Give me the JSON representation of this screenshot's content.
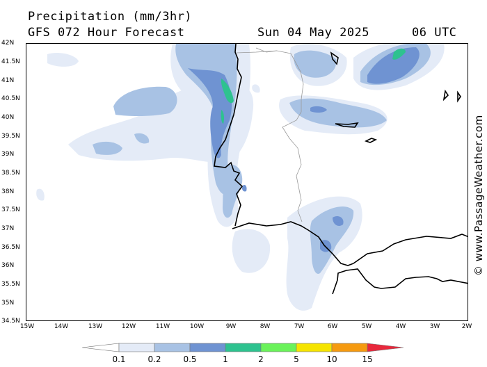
{
  "header": {
    "title": "Precipitation (mm/3hr)",
    "subtitle": "GFS 072 Hour Forecast",
    "date": "Sun 04 May 2025",
    "time": "06 UTC"
  },
  "credit": "© www.PassageWeather.com",
  "map": {
    "lat_labels": [
      "42N",
      "41.5N",
      "41N",
      "40.5N",
      "40N",
      "39.5N",
      "39N",
      "38.5N",
      "38N",
      "37.5N",
      "37N",
      "36.5N",
      "36N",
      "35.5N",
      "35N",
      "34.5N"
    ],
    "lon_labels": [
      "15W",
      "14W",
      "13W",
      "12W",
      "11W",
      "10W",
      "9W",
      "8W",
      "7W",
      "6W",
      "5W",
      "4W",
      "3W",
      "2W"
    ],
    "colors": {
      "level_0_1": "#e4ebf7",
      "level_0_2": "#a8c2e4",
      "level_0_5": "#6f93d2",
      "level_1": "#2ec28f",
      "coastline": "#000000",
      "border": "#999999"
    }
  },
  "legend": {
    "labels": [
      "0.1",
      "0.2",
      "0.5",
      "1",
      "2",
      "5",
      "10",
      "15"
    ],
    "colors": [
      "#ffffff",
      "#e4ebf7",
      "#a8c2e4",
      "#6f93d2",
      "#2ec28f",
      "#6af25a",
      "#f5e400",
      "#f59a10",
      "#e8283c"
    ]
  }
}
